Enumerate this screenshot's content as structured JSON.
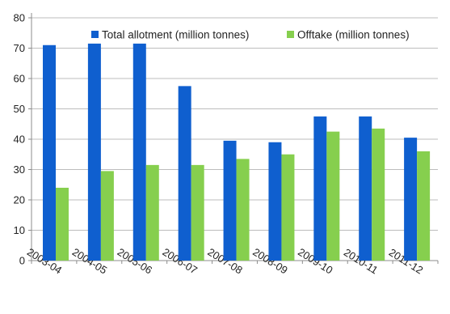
{
  "chart_data": {
    "type": "bar",
    "categories": [
      "2003-04",
      "2004-05",
      "2005-06",
      "2006-07",
      "2007-08",
      "2008-09",
      "2009-10",
      "2010-11",
      "2011-12"
    ],
    "series": [
      {
        "name": "Total allotment (million tonnes)",
        "color": "#0f5fcf",
        "values": [
          71,
          71.5,
          71.5,
          57.5,
          39.5,
          39,
          47.5,
          47.5,
          40.5
        ]
      },
      {
        "name": "Offtake (million tonnes)",
        "color": "#86cf4e",
        "values": [
          24,
          29.5,
          31.5,
          31.5,
          33.5,
          35,
          42.5,
          43.5,
          36
        ]
      }
    ],
    "ylim": [
      0,
      80
    ],
    "yticks": [
      "0",
      "10",
      "20",
      "30",
      "40",
      "50",
      "60",
      "70",
      "80"
    ],
    "title": "",
    "xlabel": "",
    "ylabel": "",
    "grid": "horizontal",
    "legend_position": "top"
  }
}
